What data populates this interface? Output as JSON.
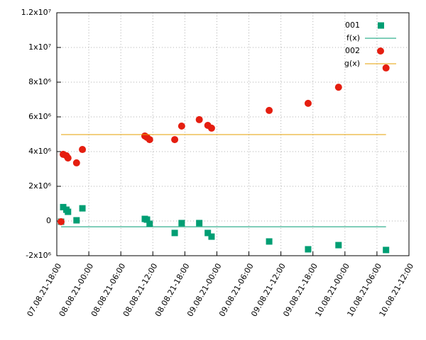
{
  "chart_data": {
    "type": "scatter",
    "x": [
      "07.08.21-18:48",
      "07.08.21-19:12",
      "07.08.21-19:48",
      "07.08.21-20:06",
      "07.08.21-21:42",
      "07.08.21-22:48",
      "08.08.21-10:30",
      "08.08.21-10:54",
      "08.08.21-11:24",
      "08.08.21-16:06",
      "08.08.21-17:24",
      "08.08.21-20:42",
      "08.08.21-22:18",
      "08.08.21-23:00",
      "09.08.21-09:48",
      "09.08.21-17:06",
      "09.08.21-22:48",
      "10.08.21-07:42"
    ],
    "series": [
      {
        "name": "001",
        "color": "#009e73",
        "marker": "square",
        "values": [
          -40000,
          800000,
          650000,
          530000,
          40000,
          730000,
          120000,
          80000,
          -160000,
          -690000,
          -120000,
          -120000,
          -690000,
          -900000,
          -1180000,
          -1630000,
          -1390000,
          -1670000
        ]
      },
      {
        "name": "f(x)",
        "color": "#009e73",
        "marker": "line",
        "x": [
          "07.08.21-18:48",
          "10.08.21-07:42"
        ],
        "values": [
          -330000,
          -330000
        ]
      },
      {
        "name": "002",
        "color": "#e51e10",
        "marker": "circle",
        "values": [
          -40000,
          3840000,
          3760000,
          3630000,
          3350000,
          4120000,
          4900000,
          4820000,
          4690000,
          4690000,
          5470000,
          5840000,
          5510000,
          5350000,
          6370000,
          6780000,
          7710000,
          8820000
        ]
      },
      {
        "name": "g(x)",
        "color": "#e69f00",
        "marker": "line",
        "x": [
          "07.08.21-18:48",
          "10.08.21-07:42"
        ],
        "values": [
          4980000,
          4980000
        ]
      }
    ],
    "xlim": [
      "07.08.21-18:00",
      "10.08.21-12:00"
    ],
    "xticks": [
      "07.08.21-18:00",
      "08.08.21-00:00",
      "08.08.21-06:00",
      "08.08.21-12:00",
      "08.08.21-18:00",
      "09.08.21-00:00",
      "09.08.21-06:00",
      "09.08.21-12:00",
      "09.08.21-18:00",
      "10.08.21-00:00",
      "10.08.21-06:00",
      "10.08.21-12:00"
    ],
    "ylim": [
      -2000000,
      12000000
    ],
    "yticks": [
      {
        "value": -2000000,
        "label": "-2x10⁶"
      },
      0,
      {
        "value": 2000000,
        "label": "2x10⁶"
      },
      {
        "value": 4000000,
        "label": "4x10⁶"
      },
      {
        "value": 6000000,
        "label": "6x10⁶"
      },
      {
        "value": 8000000,
        "label": "8x10⁶"
      },
      {
        "value": 10000000,
        "label": "1x10⁷"
      },
      {
        "value": 12000000,
        "label": "1.2x10⁷"
      }
    ],
    "grid": true,
    "legend": "top-right"
  }
}
